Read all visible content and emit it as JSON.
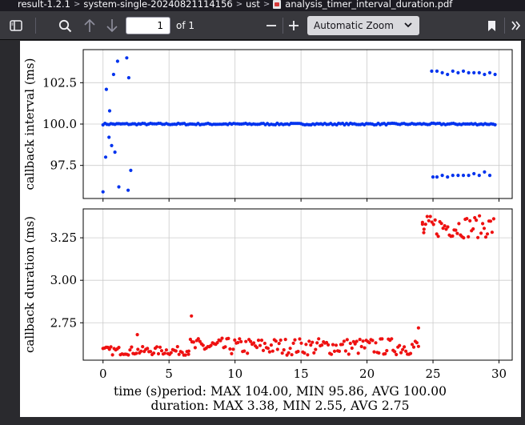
{
  "breadcrumb": {
    "items": [
      "result-1.2.1",
      "system-single-20240821114156",
      "ust",
      "analysis_timer_interval_duration.pdf"
    ],
    "separator": ">"
  },
  "toolbar": {
    "page_number": "1",
    "page_count_label": "of 1",
    "zoom_label": "Automatic Zoom",
    "icons": [
      "sidebar-toggle-icon",
      "search-icon",
      "arrow-up-icon",
      "arrow-down-icon",
      "zoom-out-icon",
      "zoom-in-icon",
      "chevron-down-icon",
      "bookmark-icon",
      "more-tools-icon"
    ]
  },
  "figure": {
    "caption_line1": "time (s)period: MAX 104.00, MIN 95.86, AVG 100.00",
    "caption_line2": "duration: MAX 3.38, MIN 2.55, AVG 2.75"
  },
  "chart_data": [
    {
      "type": "scatter",
      "ylabel": "callback interval (ms)",
      "xlim": [
        -1.5,
        31
      ],
      "ylim": [
        95.5,
        104.5
      ],
      "yticks": [
        97.5,
        100.0,
        102.5
      ],
      "ytick_labels": [
        "97.5",
        "100.0",
        "102.5"
      ],
      "xticks": [
        0,
        5,
        10,
        15,
        20,
        25,
        30
      ],
      "grid": true,
      "color": "#0033ee",
      "series": [
        {
          "points": [
            [
              0.0,
              95.9
            ],
            [
              0.2,
              98.0
            ],
            [
              0.25,
              102.1
            ],
            [
              0.45,
              99.2
            ],
            [
              0.5,
              100.8
            ],
            [
              0.65,
              98.7
            ],
            [
              0.8,
              103.0
            ],
            [
              0.9,
              98.3
            ],
            [
              1.1,
              103.8
            ],
            [
              1.2,
              96.2
            ],
            [
              1.8,
              104.0
            ],
            [
              1.9,
              96.0
            ],
            [
              1.95,
              102.8
            ],
            [
              2.1,
              97.2
            ],
            [
              25.0,
              96.8
            ],
            [
              25.3,
              96.8
            ],
            [
              25.7,
              96.9
            ],
            [
              26.1,
              96.8
            ],
            [
              26.5,
              96.9
            ],
            [
              26.9,
              96.9
            ],
            [
              27.3,
              96.9
            ],
            [
              27.7,
              96.9
            ],
            [
              28.1,
              97.0
            ],
            [
              28.5,
              96.9
            ],
            [
              28.9,
              97.1
            ],
            [
              29.3,
              96.9
            ],
            [
              24.9,
              103.2
            ],
            [
              25.3,
              103.2
            ],
            [
              25.7,
              103.1
            ],
            [
              26.1,
              103.0
            ],
            [
              26.5,
              103.2
            ],
            [
              26.9,
              103.1
            ],
            [
              27.3,
              103.2
            ],
            [
              27.7,
              103.1
            ],
            [
              28.1,
              103.1
            ],
            [
              28.5,
              103.1
            ],
            [
              28.9,
              103.0
            ],
            [
              29.3,
              103.1
            ],
            [
              29.7,
              103.0
            ]
          ],
          "band": {
            "value": 100.0,
            "from": 0.0,
            "to": 29.7,
            "step": 0.15,
            "jitter": 0.1
          }
        }
      ]
    },
    {
      "type": "scatter",
      "xlabel": "time (s)",
      "ylabel": "callback duration (ms)",
      "xlim": [
        -1.5,
        31
      ],
      "ylim": [
        2.53,
        3.42
      ],
      "yticks": [
        2.75,
        3.0,
        3.25
      ],
      "ytick_labels": [
        "2.75",
        "3.00",
        "3.25"
      ],
      "xticks": [
        0,
        5,
        10,
        15,
        20,
        25,
        30
      ],
      "xtick_labels": [
        "0",
        "5",
        "10",
        "15",
        "20",
        "25",
        "30"
      ],
      "grid": true,
      "color": "#ee1111",
      "series": [
        {
          "points": [
            [
              6.7,
              2.79
            ],
            [
              2.6,
              2.68
            ],
            [
              23.9,
              2.72
            ],
            [
              24.2,
              3.33
            ],
            [
              24.3,
              3.28
            ]
          ],
          "bands": [
            {
              "from": 0.0,
              "to": 6.5,
              "low": 2.56,
              "high": 2.61,
              "step": 0.12
            },
            {
              "from": 6.5,
              "to": 23.9,
              "low": 2.56,
              "high": 2.66,
              "step": 0.12
            },
            {
              "from": 24.2,
              "to": 29.7,
              "low": 3.25,
              "high": 3.38,
              "step": 0.12
            }
          ]
        }
      ]
    }
  ]
}
